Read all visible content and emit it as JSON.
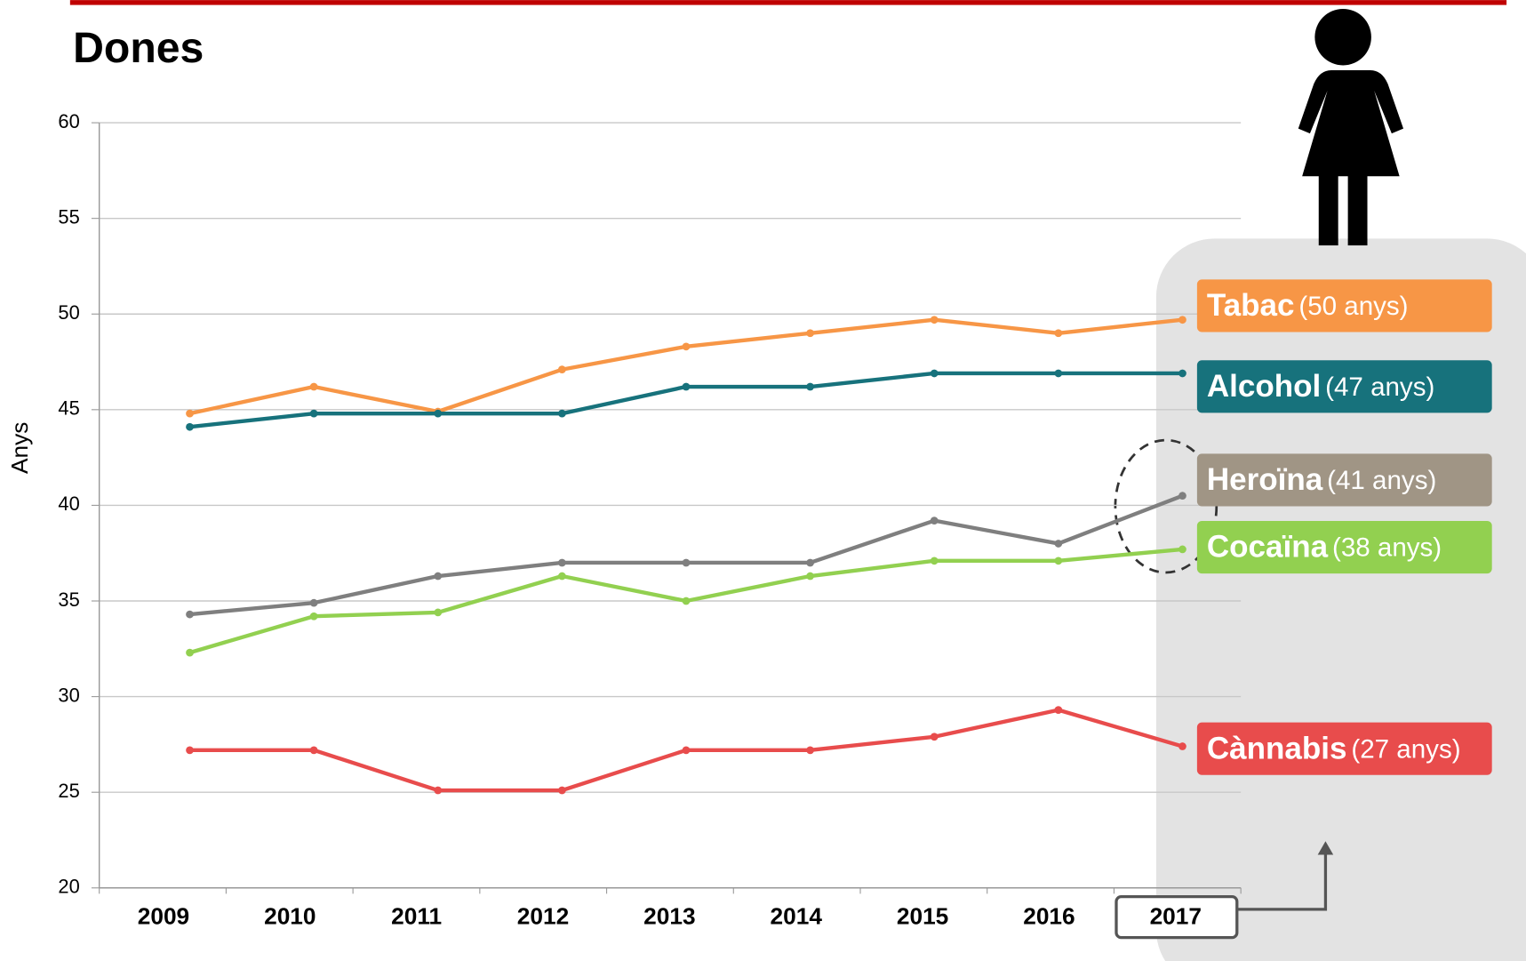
{
  "chart_data": {
    "type": "line",
    "title": "Dones",
    "y_label": "Anys",
    "categories": [
      "2009",
      "2010",
      "2011",
      "2012",
      "2013",
      "2014",
      "2015",
      "2016",
      "2017"
    ],
    "ylim": [
      20,
      60
    ],
    "yticks": [
      20,
      25,
      30,
      35,
      40,
      45,
      50,
      55,
      60
    ],
    "grid": true,
    "series": [
      {
        "name": "Tabac",
        "label": "(50 anys)",
        "color": "#f79646",
        "box_color": "#f79646",
        "values": [
          44.8,
          46.2,
          44.9,
          47.1,
          48.3,
          49.0,
          49.7,
          49.0,
          49.7
        ]
      },
      {
        "name": "Alcohol",
        "label": "(47 anys)",
        "color": "#17727c",
        "box_color": "#17727c",
        "values": [
          44.1,
          44.8,
          44.8,
          44.8,
          46.2,
          46.2,
          46.9,
          46.9,
          46.9
        ]
      },
      {
        "name": "Heroïna",
        "label": "(41 anys)",
        "color": "#7f7f7f",
        "box_color": "#a09585",
        "values": [
          34.3,
          34.9,
          36.3,
          37.0,
          37.0,
          37.0,
          39.2,
          38.0,
          40.5
        ]
      },
      {
        "name": "Cocaïna",
        "label": "(38 anys)",
        "color": "#92d050",
        "box_color": "#92d050",
        "values": [
          32.3,
          34.2,
          34.4,
          36.3,
          35.0,
          36.3,
          37.1,
          37.1,
          37.7
        ]
      },
      {
        "name": "Cànnabis",
        "label": "(27 anys)",
        "color": "#e84c4c",
        "box_color": "#e84c4c",
        "values": [
          27.2,
          27.2,
          25.1,
          25.1,
          27.2,
          27.2,
          27.9,
          29.3,
          27.4
        ]
      }
    ]
  }
}
